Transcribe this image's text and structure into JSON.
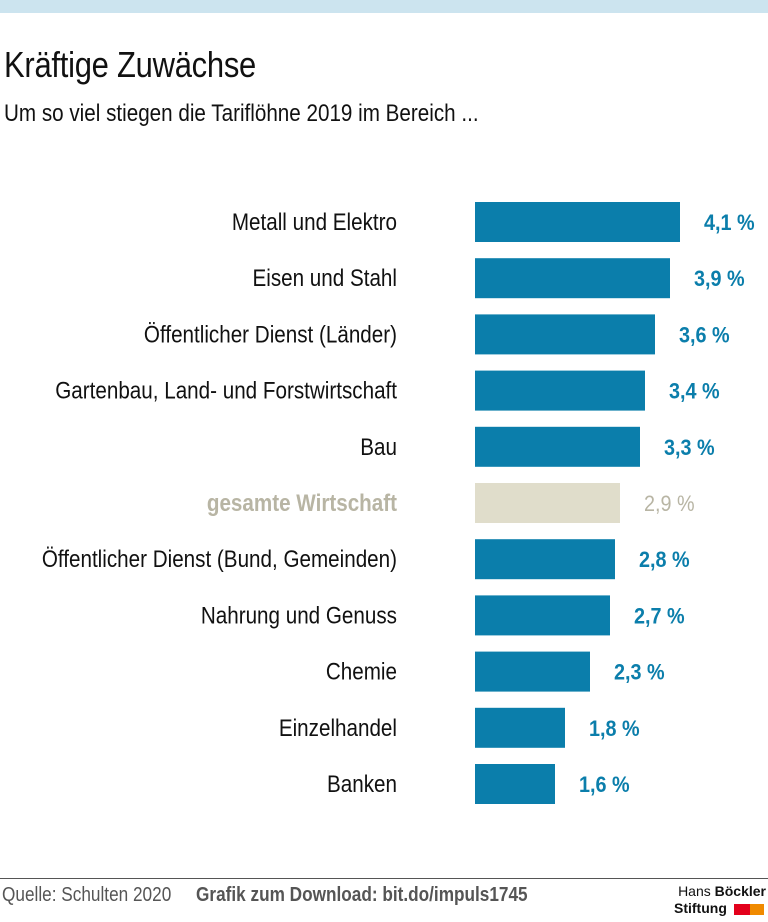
{
  "header": {
    "title": "Kräftige Zuwächse",
    "subtitle": "Um so viel stiegen die Tariflöhne 2019 im Bereich ..."
  },
  "colors": {
    "bar": "#0b7eab",
    "highlight_bar": "#e0ddcb",
    "highlight_text": "#b8b5a4",
    "top_band": "#cce4ef"
  },
  "chart_data": {
    "type": "bar",
    "orientation": "horizontal",
    "title": "Kräftige Zuwächse",
    "subtitle": "Um so viel stiegen die Tariflöhne 2019 im Bereich ...",
    "xlabel": "",
    "ylabel": "",
    "unit": "%",
    "grid": false,
    "xlim": [
      0,
      4.1
    ],
    "categories": [
      "Metall und Elektro",
      "Eisen und Stahl",
      "Öffentlicher Dienst (Länder)",
      "Gartenbau, Land- und Forstwirtschaft",
      "Bau",
      "gesamte Wirtschaft",
      "Öffentlicher Dienst (Bund, Gemeinden)",
      "Nahrung und Genuss",
      "Chemie",
      "Einzelhandel",
      "Banken"
    ],
    "values": [
      4.1,
      3.9,
      3.6,
      3.4,
      3.3,
      2.9,
      2.8,
      2.7,
      2.3,
      1.8,
      1.6
    ],
    "value_labels": [
      "4,1 %",
      "3,9 %",
      "3,6 %",
      "3,4 %",
      "3,3 %",
      "2,9 %",
      "2,8 %",
      "2,7 %",
      "2,3 %",
      "1,8 %",
      "1,6 %"
    ],
    "highlight_index": 5
  },
  "footer": {
    "source": "Quelle: Schulten 2020",
    "download": "Grafik zum Download: bit.do/impuls1745",
    "logo_line1_regular": "Hans",
    "logo_line1_bold": "Böckler",
    "logo_line2": "Stiftung"
  }
}
